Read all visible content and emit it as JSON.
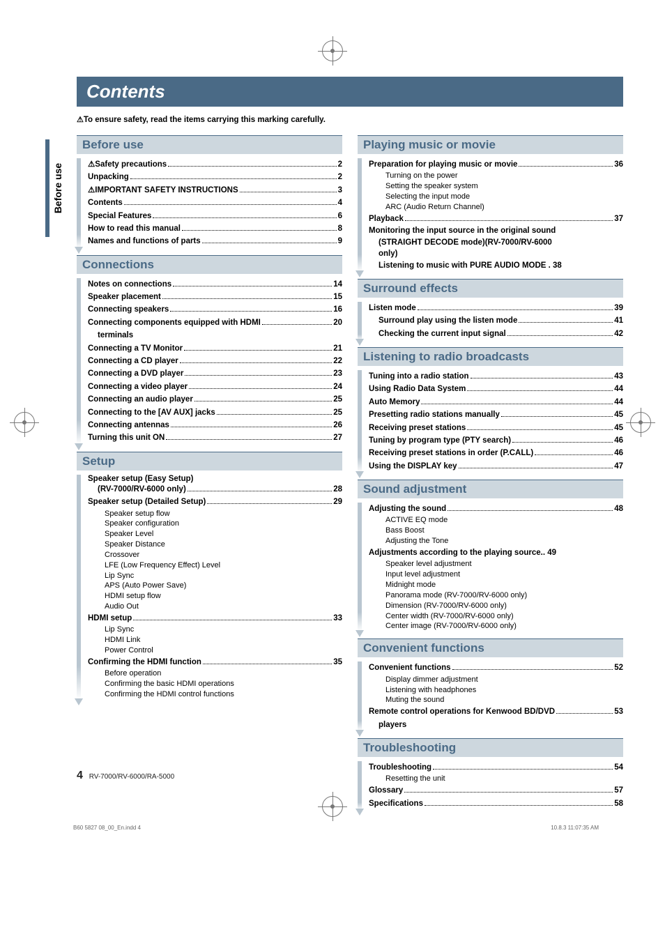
{
  "title": "Contents",
  "safety_note_bold": "To ensure safety, read the items carrying this marking carefully.",
  "side_tab": "Before use",
  "warn_glyph": "⚠",
  "sections_left": [
    {
      "header": "Before use",
      "items": [
        {
          "label": "⚠Safety precautions",
          "page": "2"
        },
        {
          "label": "Unpacking",
          "page": "2"
        },
        {
          "label": "⚠IMPORTANT SAFETY INSTRUCTIONS",
          "page": "3"
        },
        {
          "label": "Contents",
          "page": "4"
        },
        {
          "label": "Special Features",
          "page": "6"
        },
        {
          "label": "How to read this manual",
          "page": "8"
        },
        {
          "label": "Names and functions of parts",
          "page": "9"
        }
      ]
    },
    {
      "header": "Connections",
      "items": [
        {
          "label": "Notes on connections",
          "page": "14"
        },
        {
          "label": "Speaker placement",
          "page": "15"
        },
        {
          "label": "Connecting speakers",
          "page": "16"
        },
        {
          "label": "Connecting components equipped with HDMI terminals",
          "page": "20",
          "wrap": true
        },
        {
          "label": "Connecting a TV Monitor",
          "page": "21"
        },
        {
          "label": "Connecting a CD player",
          "page": "22"
        },
        {
          "label": "Connecting a DVD player",
          "page": "23"
        },
        {
          "label": "Connecting a video player",
          "page": "24"
        },
        {
          "label": "Connecting an audio player",
          "page": "25"
        },
        {
          "label": "Connecting to the [AV AUX] jacks",
          "page": "25"
        },
        {
          "label": "Connecting antennas",
          "page": "26"
        },
        {
          "label": "Turning this unit ON",
          "page": "27"
        }
      ]
    },
    {
      "header": "Setup",
      "items": [
        {
          "label": "Speaker setup (Easy Setup)",
          "cont": "(RV-7000/RV-6000 only)",
          "page": "28",
          "twoLine": true
        },
        {
          "label": "Speaker setup (Detailed Setup)",
          "page": "29",
          "subs": [
            "Speaker setup flow",
            "Speaker configuration",
            "Speaker Level",
            "Speaker Distance",
            "Crossover",
            "LFE (Low Frequency Effect) Level",
            "Lip Sync",
            "APS (Auto Power Save)",
            "HDMI setup flow",
            "Audio Out"
          ]
        },
        {
          "label": "HDMI setup",
          "page": "33",
          "subs": [
            "Lip Sync",
            "HDMI Link",
            "Power Control"
          ]
        },
        {
          "label": "Confirming the HDMI function",
          "page": "35",
          "subs": [
            "Before operation",
            "Confirming the basic HDMI operations",
            "Confirming the HDMI control functions"
          ]
        }
      ]
    }
  ],
  "sections_right": [
    {
      "header": "Playing music or movie",
      "items": [
        {
          "label": "Preparation for playing music or movie",
          "page": "36",
          "subs": [
            "Turning on the power",
            "Setting the speaker system",
            "Selecting the input mode",
            "ARC (Audio Return Channel)"
          ]
        },
        {
          "label": "Playback",
          "page": "37"
        },
        {
          "label_lines": [
            "Monitoring the input source in the original sound",
            "(STRAIGHT DECODE mode)(RV-7000/RV-6000",
            "only)",
            "Listening to music with PURE AUDIO MODE . 38"
          ],
          "no_dots": true,
          "indent_block": true
        }
      ]
    },
    {
      "header": "Surround effects",
      "items": [
        {
          "label": "Listen mode",
          "page": "39"
        },
        {
          "label": "Surround play using the listen mode",
          "page": "41",
          "indent": true
        },
        {
          "label": "Checking the current input signal",
          "page": "42",
          "indent": true
        }
      ]
    },
    {
      "header": "Listening to radio broadcasts",
      "items": [
        {
          "label": "Tuning into a radio station",
          "page": "43"
        },
        {
          "label": "Using Radio Data System",
          "page": "44"
        },
        {
          "label": "Auto Memory",
          "page": "44"
        },
        {
          "label": "Presetting radio stations manually",
          "page": "45"
        },
        {
          "label": "Receiving preset stations",
          "page": "45"
        },
        {
          "label": "Tuning by program type (PTY search)",
          "page": "46"
        },
        {
          "label": "Receiving preset stations in order (P.CALL)",
          "page": "46"
        },
        {
          "label": "Using the DISPLAY key",
          "page": "47"
        }
      ]
    },
    {
      "header": "Sound adjustment",
      "items": [
        {
          "label": "Adjusting the sound",
          "page": "48",
          "subs": [
            "ACTIVE EQ mode",
            "Bass Boost",
            "Adjusting the Tone"
          ]
        },
        {
          "label": "Adjustments according to the playing source",
          "page": "49",
          "tight": true,
          "subs": [
            "Speaker level adjustment",
            "Input level adjustment",
            "Midnight mode",
            "Panorama mode (RV-7000/RV-6000 only)",
            "Dimension (RV-7000/RV-6000 only)",
            "Center width (RV-7000/RV-6000 only)",
            "Center image (RV-7000/RV-6000 only)"
          ]
        }
      ]
    },
    {
      "header": "Convenient functions",
      "items": [
        {
          "label": "Convenient functions",
          "page": "52",
          "subs": [
            "Display dimmer adjustment",
            "Listening with headphones",
            "Muting the sound"
          ]
        },
        {
          "label": "Remote control operations for Kenwood BD/DVD players",
          "page": "53",
          "wrap": true
        }
      ]
    },
    {
      "header": "Troubleshooting",
      "items": [
        {
          "label": "Troubleshooting",
          "page": "54",
          "subs": [
            "Resetting the unit"
          ]
        },
        {
          "label": "Glossary",
          "page": "57"
        },
        {
          "label": "Specifications",
          "page": "58"
        }
      ]
    }
  ],
  "footer_page": "4",
  "footer_model": "RV-7000/RV-6000/RA-5000",
  "print_footer_left": "B60 5827 08_00_En.indd   4",
  "print_footer_right": "10.8.3   11:07:35 AM"
}
